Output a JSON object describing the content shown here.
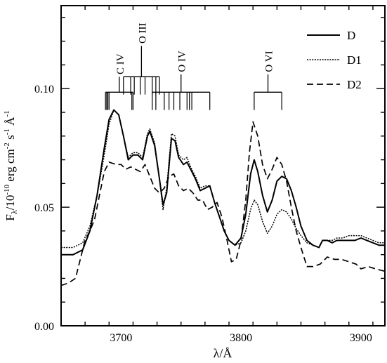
{
  "chart_data": {
    "type": "line",
    "xlabel": "λ/Å",
    "ylabel": {
      "main": "F",
      "sub": "λ",
      "rest": "/10",
      "exp1": "-10",
      "unit1": " erg cm",
      "exp2": "-2",
      "unit2": " s",
      "exp3": "-1",
      "unit3": " Å",
      "exp4": "-1"
    },
    "xlim": [
      3650,
      3920
    ],
    "ylim": [
      0.0,
      0.135
    ],
    "xticks": {
      "major": [
        3700,
        3800,
        3900
      ],
      "major_labels": [
        "3700",
        "3800",
        "3900"
      ],
      "minor_step": 20
    },
    "yticks": {
      "major": [
        0.0,
        0.05,
        0.1
      ],
      "major_labels": [
        "0.00",
        "0.05",
        "0.10"
      ],
      "minor_step": 0.01
    },
    "legend_position": "top-right",
    "series": [
      {
        "name": "D",
        "dash": "solid",
        "x": [
          3650,
          3660,
          3668,
          3674,
          3680,
          3686,
          3690,
          3694,
          3698,
          3702,
          3706,
          3710,
          3714,
          3718,
          3722,
          3724,
          3728,
          3732,
          3735,
          3738,
          3742,
          3745,
          3748,
          3752,
          3755,
          3758,
          3762,
          3766,
          3770,
          3774,
          3778,
          3782,
          3786,
          3790,
          3795,
          3800,
          3804,
          3808,
          3811,
          3814,
          3818,
          3822,
          3826,
          3830,
          3834,
          3838,
          3842,
          3846,
          3850,
          3855,
          3860,
          3865,
          3868,
          3872,
          3876,
          3880,
          3885,
          3890,
          3895,
          3900,
          3905,
          3910,
          3915,
          3920
        ],
        "y": [
          0.03,
          0.03,
          0.032,
          0.04,
          0.055,
          0.075,
          0.087,
          0.091,
          0.089,
          0.08,
          0.07,
          0.072,
          0.072,
          0.07,
          0.08,
          0.082,
          0.076,
          0.062,
          0.051,
          0.056,
          0.079,
          0.078,
          0.071,
          0.068,
          0.069,
          0.066,
          0.062,
          0.057,
          0.058,
          0.059,
          0.052,
          0.046,
          0.04,
          0.036,
          0.034,
          0.037,
          0.047,
          0.064,
          0.07,
          0.065,
          0.055,
          0.048,
          0.053,
          0.061,
          0.063,
          0.062,
          0.057,
          0.05,
          0.042,
          0.036,
          0.034,
          0.033,
          0.036,
          0.036,
          0.035,
          0.036,
          0.036,
          0.036,
          0.036,
          0.037,
          0.036,
          0.035,
          0.034,
          0.034
        ]
      },
      {
        "name": "D1",
        "dash": "dotted",
        "x": [
          3650,
          3660,
          3668,
          3674,
          3680,
          3686,
          3690,
          3694,
          3698,
          3702,
          3706,
          3710,
          3714,
          3718,
          3722,
          3724,
          3728,
          3732,
          3735,
          3738,
          3742,
          3745,
          3748,
          3752,
          3755,
          3758,
          3762,
          3766,
          3770,
          3774,
          3778,
          3782,
          3786,
          3790,
          3795,
          3800,
          3804,
          3808,
          3811,
          3814,
          3818,
          3822,
          3826,
          3830,
          3834,
          3838,
          3842,
          3846,
          3850,
          3855,
          3860,
          3865,
          3868,
          3872,
          3876,
          3880,
          3885,
          3890,
          3895,
          3900,
          3905,
          3910,
          3915,
          3920
        ],
        "y": [
          0.033,
          0.033,
          0.035,
          0.042,
          0.055,
          0.072,
          0.085,
          0.091,
          0.089,
          0.08,
          0.071,
          0.073,
          0.073,
          0.071,
          0.081,
          0.083,
          0.077,
          0.062,
          0.049,
          0.058,
          0.081,
          0.08,
          0.072,
          0.07,
          0.071,
          0.067,
          0.063,
          0.058,
          0.059,
          0.059,
          0.052,
          0.046,
          0.04,
          0.036,
          0.034,
          0.035,
          0.04,
          0.049,
          0.053,
          0.051,
          0.044,
          0.039,
          0.042,
          0.047,
          0.049,
          0.048,
          0.045,
          0.041,
          0.038,
          0.035,
          0.034,
          0.033,
          0.036,
          0.036,
          0.036,
          0.037,
          0.037,
          0.038,
          0.038,
          0.038,
          0.037,
          0.036,
          0.035,
          0.035
        ]
      },
      {
        "name": "D2",
        "dash": "dashed",
        "x": [
          3650,
          3656,
          3662,
          3666,
          3670,
          3674,
          3678,
          3682,
          3686,
          3690,
          3696,
          3700,
          3704,
          3708,
          3712,
          3716,
          3720,
          3724,
          3728,
          3732,
          3736,
          3740,
          3744,
          3748,
          3752,
          3756,
          3760,
          3764,
          3768,
          3772,
          3776,
          3780,
          3784,
          3788,
          3792,
          3796,
          3800,
          3804,
          3807,
          3810,
          3814,
          3818,
          3822,
          3826,
          3830,
          3834,
          3838,
          3842,
          3846,
          3850,
          3855,
          3860,
          3866,
          3872,
          3878,
          3884,
          3890,
          3896,
          3900,
          3906,
          3912,
          3920
        ],
        "y": [
          0.017,
          0.018,
          0.02,
          0.028,
          0.036,
          0.04,
          0.045,
          0.055,
          0.065,
          0.069,
          0.068,
          0.068,
          0.066,
          0.067,
          0.066,
          0.065,
          0.068,
          0.063,
          0.058,
          0.056,
          0.058,
          0.063,
          0.064,
          0.059,
          0.057,
          0.058,
          0.056,
          0.053,
          0.053,
          0.049,
          0.05,
          0.052,
          0.046,
          0.037,
          0.027,
          0.028,
          0.036,
          0.053,
          0.073,
          0.086,
          0.08,
          0.068,
          0.062,
          0.066,
          0.071,
          0.068,
          0.061,
          0.05,
          0.04,
          0.033,
          0.025,
          0.025,
          0.026,
          0.029,
          0.028,
          0.028,
          0.027,
          0.026,
          0.024,
          0.025,
          0.024,
          0.023
        ]
      }
    ],
    "line_labels": [
      {
        "ion": "C IV",
        "hang": 0.098,
        "bar": 0.0985,
        "stem_top": 0.105,
        "label_y": 0.106,
        "ticks": [
          3687,
          3688,
          3689,
          3690,
          3709,
          3710
        ]
      },
      {
        "ion": "O III",
        "hang": 0.1045,
        "bar": 0.105,
        "stem_top": 0.118,
        "label_y": 0.119,
        "ticks": [
          3702,
          3708,
          3711,
          3716,
          3720,
          3726,
          3729,
          3732
        ]
      },
      {
        "ion": "O IV",
        "hang": 0.098,
        "bar": 0.0985,
        "stem_top": 0.106,
        "label_y": 0.107,
        "ticks": [
          3726,
          3729,
          3736,
          3740,
          3744,
          3749,
          3755,
          3757,
          3759,
          3774
        ]
      },
      {
        "ion": "O VI",
        "hang": 0.098,
        "bar": 0.0985,
        "stem_top": 0.106,
        "label_y": 0.107,
        "ticks": [
          3811,
          3834
        ]
      }
    ]
  }
}
